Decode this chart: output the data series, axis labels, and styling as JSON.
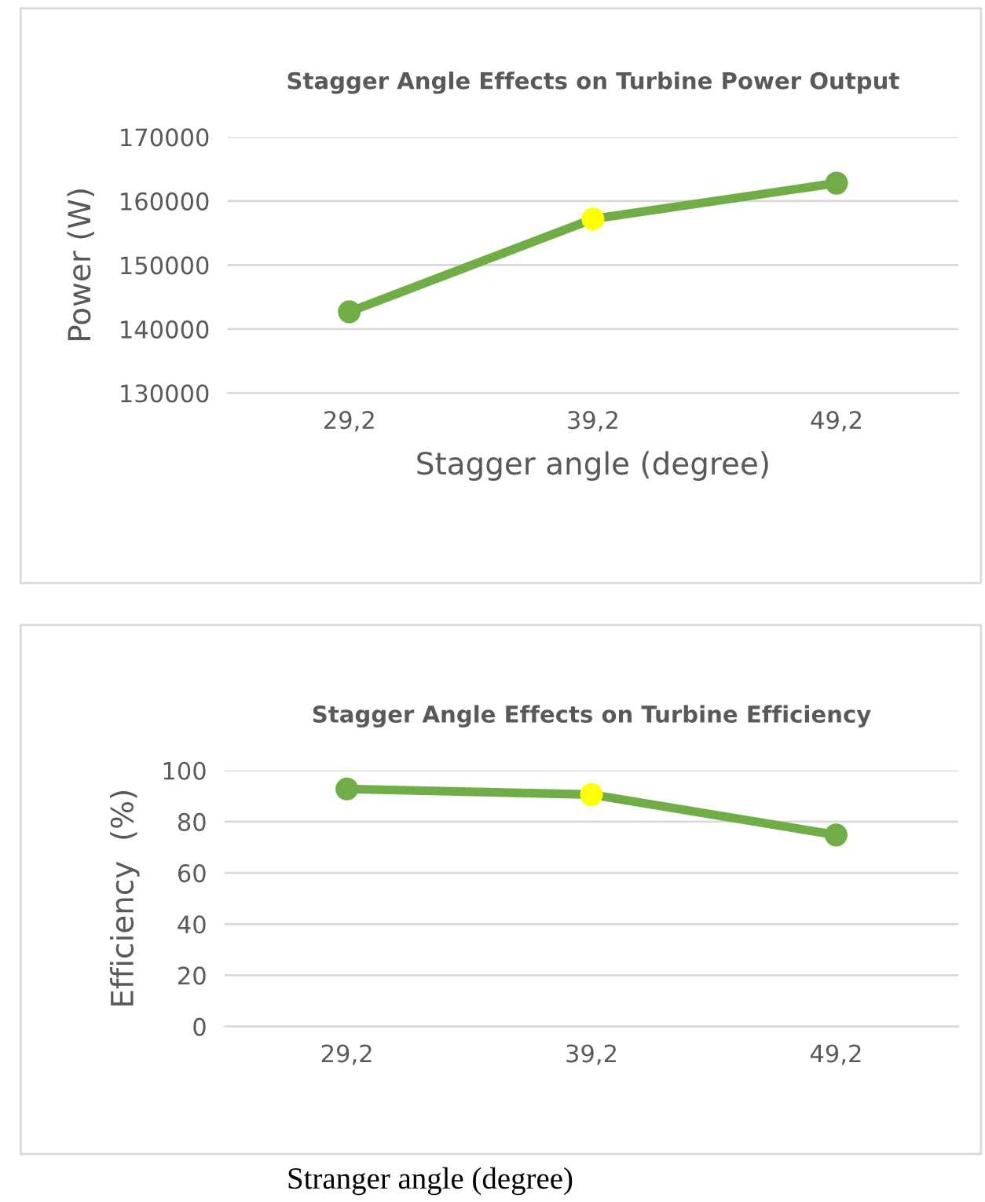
{
  "chart_data": [
    {
      "type": "line",
      "title": "Stagger Angle Effects on Turbine Power Output",
      "xlabel": "Stagger angle (degree)",
      "ylabel": "Power (W)",
      "categories": [
        "29,2",
        "39,2",
        "49,2"
      ],
      "series": [
        {
          "color": "#70ad47",
          "colors": [
            "#70ad47",
            "#ffff00",
            "#70ad47"
          ],
          "values": [
            142700,
            157200,
            162800
          ]
        }
      ],
      "ylim": [
        130000,
        170000
      ],
      "yticks": [
        130000,
        140000,
        150000,
        160000,
        170000
      ],
      "grid": "y",
      "marker": "circle",
      "line_style": "solid"
    },
    {
      "type": "line",
      "title": "Stagger Angle Effects on Turbine Efficiency",
      "xlabel": "Stranger angle (degree)",
      "ylabel": "Efficiency  (%)",
      "categories": [
        "29,2",
        "39,2",
        "49,2"
      ],
      "series": [
        {
          "color": "#70ad47",
          "colors": [
            "#70ad47",
            "#ffff00",
            "#70ad47"
          ],
          "values": [
            92.8,
            90.6,
            74.8
          ]
        }
      ],
      "ylim": [
        0,
        100
      ],
      "yticks": [
        0,
        20,
        40,
        60,
        80,
        100
      ],
      "grid": "y",
      "marker": "circle",
      "line_style": "solid"
    }
  ]
}
